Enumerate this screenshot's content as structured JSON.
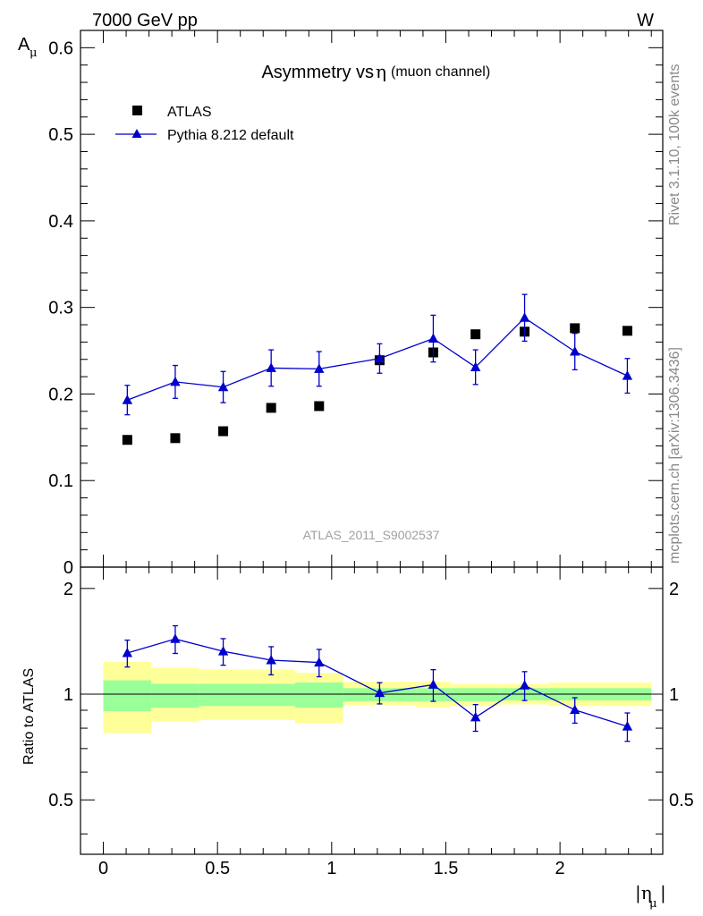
{
  "header": {
    "left": "7000 GeV pp",
    "right": "W"
  },
  "side_labels": {
    "rivet": "Rivet 3.1.10,  100k events",
    "mcplots": "mcplots.cern.ch [arXiv:1306.3436]"
  },
  "chart_data": [
    {
      "type": "scatter",
      "title": "Asymmetry vs",
      "title_symbol": "η",
      "title_suffix": "(muon channel)",
      "ylabel": "A",
      "ylabel_sub": "μ",
      "watermark": "ATLAS_2011_S9002537",
      "xlim": [
        -0.1,
        2.45
      ],
      "ylim": [
        0,
        0.62
      ],
      "yticks": [
        0,
        0.1,
        0.2,
        0.3,
        0.4,
        0.5,
        0.6
      ],
      "ytick_labels": [
        "0",
        "0.1",
        "0.2",
        "0.3",
        "0.4",
        "0.5",
        "0.6"
      ],
      "legend_position": "top-left",
      "series": [
        {
          "name": "ATLAS",
          "marker": "square",
          "color": "#000000",
          "x": [
            0.105,
            0.315,
            0.525,
            0.735,
            0.945,
            1.21,
            1.445,
            1.63,
            1.845,
            2.065,
            2.295
          ],
          "y": [
            0.147,
            0.149,
            0.157,
            0.184,
            0.186,
            0.239,
            0.248,
            0.269,
            0.272,
            0.276,
            0.273
          ]
        },
        {
          "name": "Pythia 8.212 default",
          "marker": "triangle",
          "color": "#0000cc",
          "x": [
            0.105,
            0.315,
            0.525,
            0.735,
            0.945,
            1.21,
            1.445,
            1.63,
            1.845,
            2.065,
            2.295
          ],
          "y": [
            0.193,
            0.214,
            0.208,
            0.23,
            0.229,
            0.241,
            0.264,
            0.231,
            0.288,
            0.249,
            0.221
          ],
          "yerr": [
            0.017,
            0.019,
            0.018,
            0.021,
            0.02,
            0.017,
            0.027,
            0.02,
            0.027,
            0.021,
            0.02
          ]
        }
      ]
    },
    {
      "type": "scatter",
      "ylabel": "Ratio to ATLAS",
      "xlabel": "|η",
      "xlabel_sub": "μ",
      "xlabel_suffix": "|",
      "xlim": [
        -0.1,
        2.45
      ],
      "ylim": [
        0.35,
        2.3
      ],
      "yticks": [
        0.5,
        1,
        2
      ],
      "ytick_labels": [
        "0.5",
        "1",
        "2"
      ],
      "xticks": [
        0,
        0.5,
        1,
        1.5,
        2
      ],
      "xtick_labels": [
        "0",
        "0.5",
        "1",
        "1.5",
        "2"
      ],
      "bands": [
        {
          "x0": 0.0,
          "x1": 0.21,
          "yellow": [
            0.775,
            1.235
          ],
          "green": [
            0.895,
            1.095
          ]
        },
        {
          "x0": 0.21,
          "x1": 0.42,
          "yellow": [
            0.835,
            1.19
          ],
          "green": [
            0.915,
            1.07
          ]
        },
        {
          "x0": 0.42,
          "x1": 0.84,
          "yellow": [
            0.845,
            1.175
          ],
          "green": [
            0.925,
            1.07
          ]
        },
        {
          "x0": 0.84,
          "x1": 1.05,
          "yellow": [
            0.825,
            1.15
          ],
          "green": [
            0.915,
            1.08
          ]
        },
        {
          "x0": 1.05,
          "x1": 1.37,
          "yellow": [
            0.93,
            1.085
          ],
          "green": [
            0.955,
            1.04
          ]
        },
        {
          "x0": 1.37,
          "x1": 1.52,
          "yellow": [
            0.915,
            1.085
          ],
          "green": [
            0.955,
            1.04
          ]
        },
        {
          "x0": 1.52,
          "x1": 1.74,
          "yellow": [
            0.925,
            1.07
          ],
          "green": [
            0.955,
            1.04
          ]
        },
        {
          "x0": 1.74,
          "x1": 1.95,
          "yellow": [
            0.935,
            1.07
          ],
          "green": [
            0.96,
            1.04
          ]
        },
        {
          "x0": 1.95,
          "x1": 2.4,
          "yellow": [
            0.925,
            1.08
          ],
          "green": [
            0.96,
            1.04
          ]
        }
      ],
      "series": [
        {
          "name": "Pythia 8.212 default",
          "marker": "triangle",
          "color": "#0000cc",
          "x": [
            0.105,
            0.315,
            0.525,
            0.735,
            0.945,
            1.21,
            1.445,
            1.63,
            1.845,
            2.065,
            2.295
          ],
          "y": [
            1.31,
            1.436,
            1.324,
            1.25,
            1.231,
            1.008,
            1.064,
            0.859,
            1.059,
            0.902,
            0.809
          ],
          "yerr": [
            0.115,
            0.13,
            0.115,
            0.115,
            0.11,
            0.07,
            0.11,
            0.075,
            0.1,
            0.075,
            0.075
          ]
        }
      ]
    }
  ]
}
